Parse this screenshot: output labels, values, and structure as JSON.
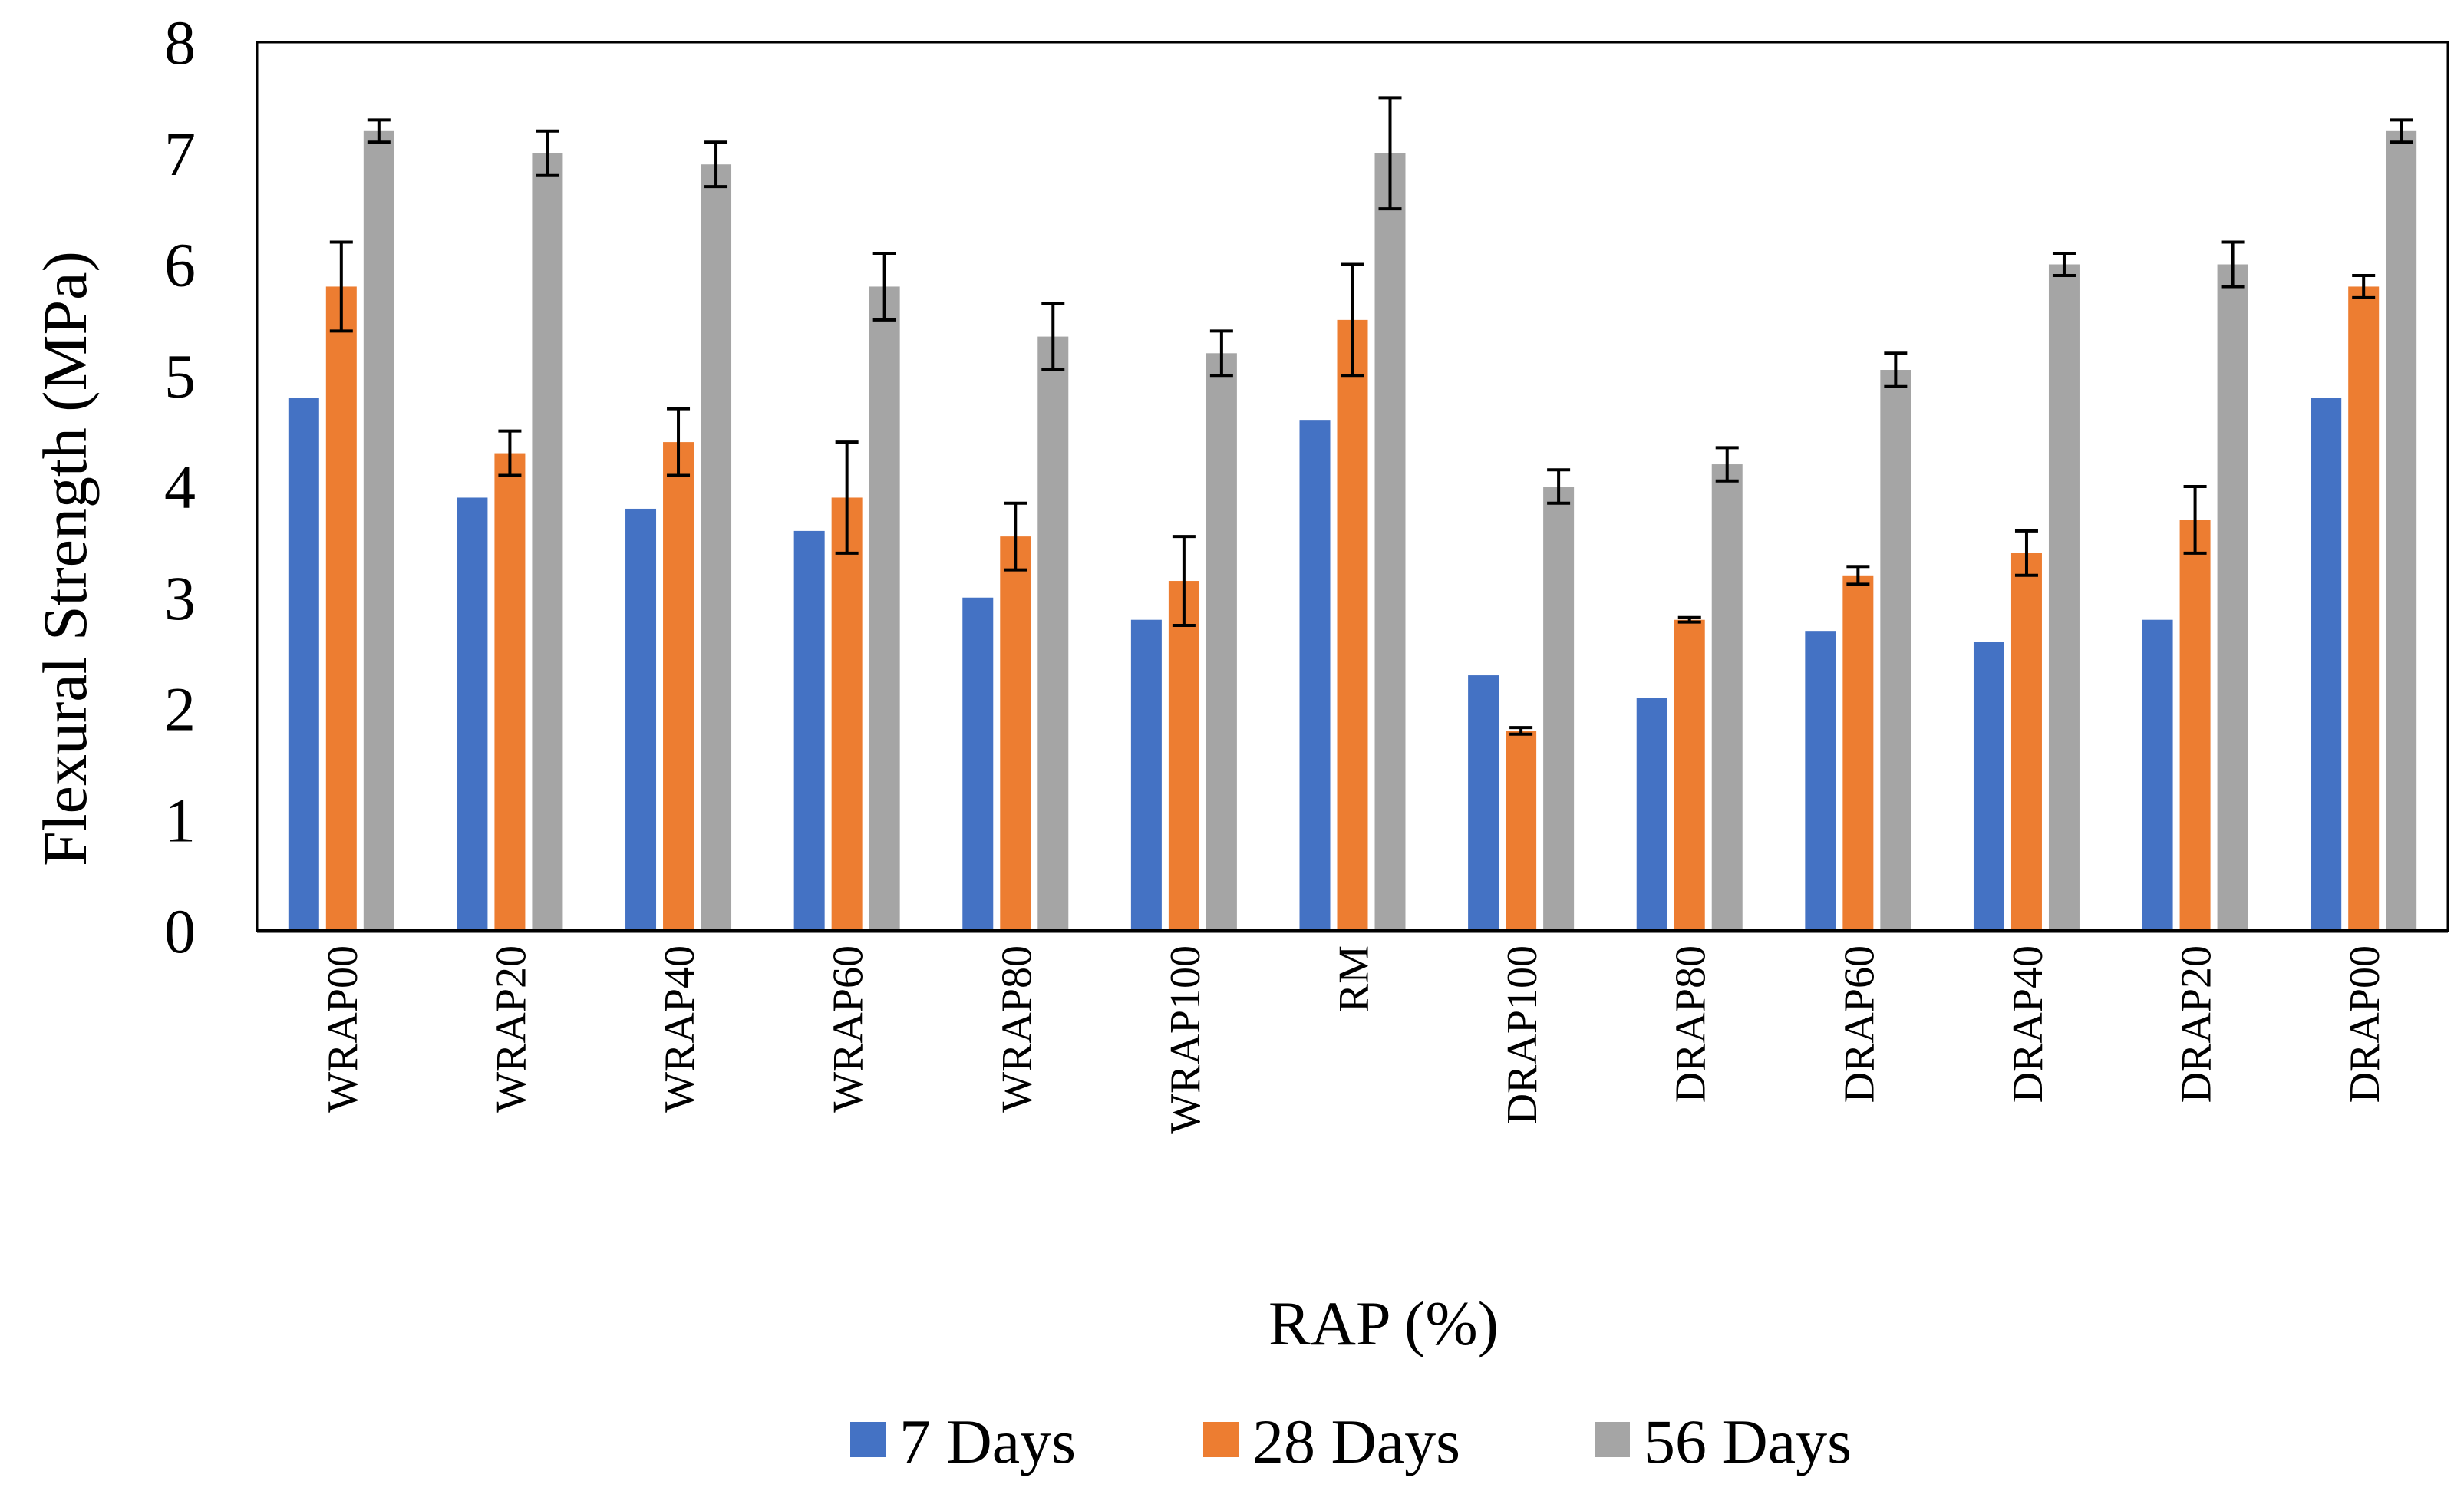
{
  "chart_data": {
    "type": "bar",
    "title": "",
    "xlabel": "RAP (%)",
    "ylabel": "Flexural Strength (MPa)",
    "ylim": [
      0,
      8
    ],
    "yticks": [
      "0",
      "1",
      "2",
      "3",
      "4",
      "5",
      "6",
      "7",
      "8"
    ],
    "grid": false,
    "legend_position": "bottom",
    "categories": [
      "WRAP00",
      "WRAP20",
      "WRAP40",
      "WRAP60",
      "WRAP80",
      "WRAP100",
      "RM",
      "DRAP100",
      "DRAP80",
      "DRAP60",
      "DRAP40",
      "DRAP20",
      "DRAP00"
    ],
    "series": [
      {
        "name": "7 Days",
        "color": "#4472C4",
        "values": [
          4.8,
          3.9,
          3.8,
          3.6,
          3.0,
          2.8,
          4.6,
          2.3,
          2.1,
          2.7,
          2.6,
          2.8,
          4.8
        ],
        "errors": [
          0,
          0,
          0,
          0,
          0,
          0,
          0,
          0,
          0,
          0,
          0,
          0,
          0
        ]
      },
      {
        "name": "28 Days",
        "color": "#ED7D31",
        "values": [
          5.8,
          4.3,
          4.4,
          3.9,
          3.55,
          3.15,
          5.5,
          1.8,
          2.8,
          3.2,
          3.4,
          3.7,
          5.8
        ],
        "errors": [
          0.4,
          0.2,
          0.3,
          0.5,
          0.3,
          0.4,
          0.5,
          0.03,
          0.02,
          0.08,
          0.2,
          0.3,
          0.1
        ]
      },
      {
        "name": "56 Days",
        "color": "#A5A5A5",
        "values": [
          7.2,
          7.0,
          6.9,
          5.8,
          5.35,
          5.2,
          7.0,
          4.0,
          4.2,
          5.05,
          6.0,
          6.0,
          7.2
        ],
        "errors": [
          0.1,
          0.2,
          0.2,
          0.3,
          0.3,
          0.2,
          0.5,
          0.15,
          0.15,
          0.15,
          0.1,
          0.2,
          0.1
        ]
      }
    ]
  }
}
